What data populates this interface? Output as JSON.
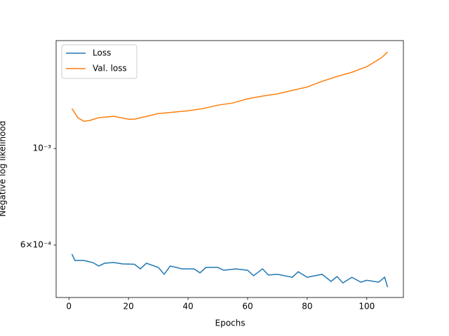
{
  "chart_data": {
    "type": "line",
    "xlabel": "Epochs",
    "ylabel": "Negative log likelihood",
    "log_y": true,
    "legend": "upper left",
    "xlim": [
      -4.3,
      112.3
    ],
    "xticks": [
      0,
      20,
      40,
      60,
      80,
      100
    ],
    "ylim": [
      0.0004546,
      0.00177
    ],
    "yticks": [
      {
        "value": 0.001,
        "label": "10⁻³"
      },
      {
        "value": 0.0006,
        "label": "6×10⁻⁴"
      }
    ],
    "series": [
      {
        "name": "Loss",
        "color": "#1f77b4",
        "x": [
          1,
          2,
          5,
          8,
          10,
          12,
          15,
          18,
          22,
          24,
          26,
          30,
          32,
          34,
          38,
          42,
          44,
          46,
          50,
          52,
          56,
          60,
          62,
          65,
          67,
          70,
          75,
          77,
          80,
          85,
          88,
          90,
          92,
          95,
          98,
          100,
          104,
          106,
          107
        ],
        "values": [
          0.000572,
          0.000553,
          0.000553,
          0.000547,
          0.000537,
          0.000545,
          0.000547,
          0.000543,
          0.000542,
          0.000529,
          0.000545,
          0.000533,
          0.000514,
          0.000537,
          0.000529,
          0.000529,
          0.000518,
          0.000533,
          0.000533,
          0.000525,
          0.000529,
          0.000525,
          0.00051,
          0.000529,
          0.000512,
          0.000514,
          0.000506,
          0.000521,
          0.000506,
          0.000514,
          0.000495,
          0.000508,
          0.000491,
          0.000506,
          0.000493,
          0.000498,
          0.000493,
          0.000506,
          0.00048
        ]
      },
      {
        "name": "Val. loss",
        "color": "#ff7f0e",
        "x": [
          1,
          3,
          5,
          7,
          10,
          15,
          20,
          22,
          25,
          30,
          35,
          40,
          45,
          50,
          55,
          60,
          65,
          70,
          75,
          80,
          85,
          90,
          95,
          100,
          105,
          107
        ],
        "values": [
          0.001235,
          0.001177,
          0.001155,
          0.00116,
          0.001177,
          0.001186,
          0.001168,
          0.001168,
          0.001181,
          0.001203,
          0.001212,
          0.001221,
          0.001235,
          0.001258,
          0.001272,
          0.001301,
          0.00132,
          0.001335,
          0.00136,
          0.001385,
          0.001427,
          0.001464,
          0.001497,
          0.001542,
          0.001618,
          0.001667
        ]
      }
    ]
  }
}
